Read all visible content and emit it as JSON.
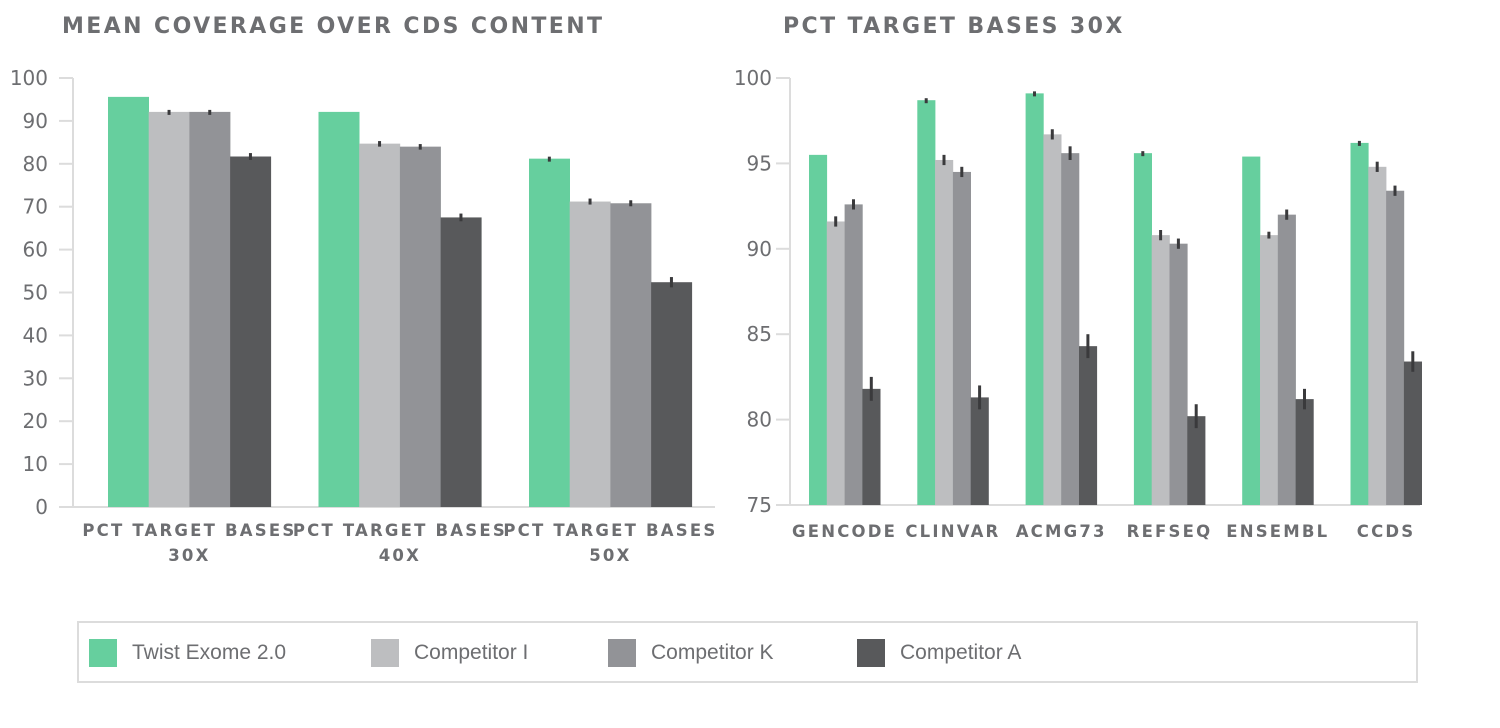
{
  "colors": {
    "series": [
      "#66cf9e",
      "#bdbec0",
      "#929397",
      "#58595b"
    ],
    "text": "#6d6e71",
    "axis": "#dcdcdc",
    "error_bar": "#3a3a3c"
  },
  "legend": {
    "items": [
      {
        "label": "Twist Exome 2.0"
      },
      {
        "label": "Competitor I"
      },
      {
        "label": "Competitor K"
      },
      {
        "label": "Competitor A"
      }
    ]
  },
  "chart_data": [
    {
      "type": "bar",
      "title": "MEAN COVERAGE OVER CDS CONTENT",
      "xlabel": "",
      "ylabel": "",
      "ylim": [
        0,
        100
      ],
      "yticks": [
        "0",
        "10",
        "20",
        "30",
        "40",
        "50",
        "60",
        "70",
        "80",
        "90",
        "100"
      ],
      "grid": false,
      "categories": [
        [
          "PCT TARGET BASES",
          "30X"
        ],
        [
          "PCT TARGET BASES",
          "40X"
        ],
        [
          "PCT TARGET BASES",
          "50X"
        ]
      ],
      "series": [
        {
          "name": "Twist Exome 2.0",
          "values": [
            95.6,
            92.1,
            81.2
          ],
          "error": [
            0,
            0,
            0.4
          ]
        },
        {
          "name": "Competitor I",
          "values": [
            92.1,
            84.7,
            71.2
          ],
          "error": [
            0.4,
            0.6,
            0.7
          ]
        },
        {
          "name": "Competitor K",
          "values": [
            92.1,
            84.0,
            70.8
          ],
          "error": [
            0.4,
            0.6,
            0.7
          ]
        },
        {
          "name": "Competitor A",
          "values": [
            81.7,
            67.5,
            52.4
          ],
          "error": [
            0.8,
            0.9,
            1.2
          ]
        }
      ]
    },
    {
      "type": "bar",
      "title": "PCT TARGET BASES 30X",
      "xlabel": "",
      "ylabel": "",
      "ylim": [
        75,
        100
      ],
      "yticks": [
        "75",
        "80",
        "85",
        "90",
        "95",
        "100"
      ],
      "grid": false,
      "categories": [
        [
          "GENCODE"
        ],
        [
          "CLINVAR"
        ],
        [
          "ACMG73"
        ],
        [
          "REFSEQ"
        ],
        [
          "ENSEMBL"
        ],
        [
          "CCDS"
        ]
      ],
      "series": [
        {
          "name": "Twist Exome 2.0",
          "values": [
            95.5,
            98.7,
            99.1,
            95.6,
            95.4,
            96.2
          ],
          "error": [
            0,
            0.1,
            0.1,
            0.1,
            0,
            0.1
          ]
        },
        {
          "name": "Competitor I",
          "values": [
            91.6,
            95.2,
            96.7,
            90.8,
            90.8,
            94.8
          ],
          "error": [
            0.3,
            0.3,
            0.3,
            0.3,
            0.2,
            0.3
          ]
        },
        {
          "name": "Competitor K",
          "values": [
            92.6,
            94.5,
            95.6,
            90.3,
            92.0,
            93.4
          ],
          "error": [
            0.3,
            0.3,
            0.4,
            0.3,
            0.3,
            0.3
          ]
        },
        {
          "name": "Competitor A",
          "values": [
            81.8,
            81.3,
            84.3,
            80.2,
            81.2,
            83.4
          ],
          "error": [
            0.7,
            0.7,
            0.7,
            0.7,
            0.6,
            0.6
          ]
        }
      ]
    }
  ]
}
